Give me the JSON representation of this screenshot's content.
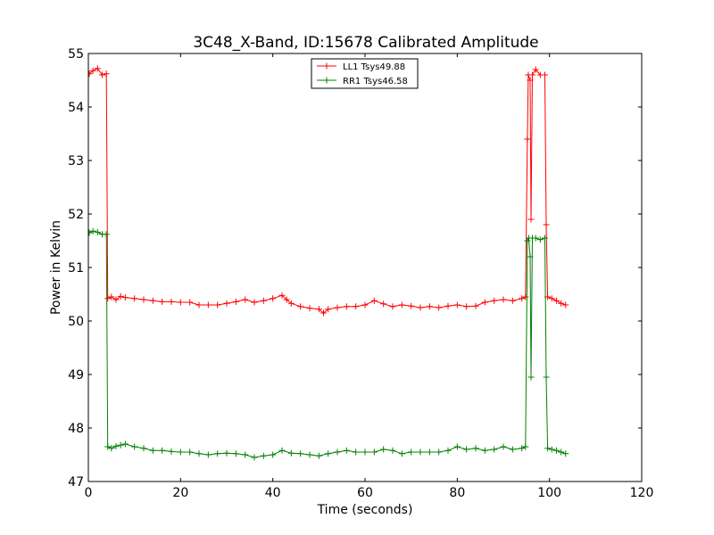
{
  "chart_data": {
    "type": "line",
    "title": "3C48_X-Band, ID:15678 Calibrated Amplitude",
    "xlabel": "Time (seconds)",
    "ylabel": "Power in Kelvin",
    "xlim": [
      0,
      120
    ],
    "ylim": [
      47,
      55
    ],
    "xticks": [
      "0",
      "20",
      "40",
      "60",
      "80",
      "100",
      "120"
    ],
    "yticks": [
      "47",
      "48",
      "49",
      "50",
      "51",
      "52",
      "53",
      "54",
      "55"
    ],
    "grid": false,
    "legend_position": "top-center",
    "marker": "plus",
    "series": [
      {
        "name": "LL1 Tsys49.88",
        "color": "#ff0000",
        "points": [
          [
            0.2,
            54.62
          ],
          [
            1,
            54.68
          ],
          [
            2,
            54.72
          ],
          [
            3,
            54.6
          ],
          [
            3.9,
            54.62
          ],
          [
            4.2,
            50.42
          ],
          [
            5,
            50.45
          ],
          [
            6,
            50.4
          ],
          [
            7,
            50.46
          ],
          [
            8,
            50.44
          ],
          [
            10,
            50.42
          ],
          [
            12,
            50.4
          ],
          [
            14,
            50.38
          ],
          [
            16,
            50.36
          ],
          [
            18,
            50.36
          ],
          [
            20,
            50.35
          ],
          [
            22,
            50.35
          ],
          [
            24,
            50.3
          ],
          [
            26,
            50.3
          ],
          [
            28,
            50.3
          ],
          [
            30,
            50.33
          ],
          [
            32,
            50.36
          ],
          [
            34,
            50.4
          ],
          [
            36,
            50.35
          ],
          [
            38,
            50.38
          ],
          [
            40,
            50.42
          ],
          [
            42,
            50.48
          ],
          [
            43,
            50.4
          ],
          [
            44,
            50.33
          ],
          [
            46,
            50.27
          ],
          [
            48,
            50.24
          ],
          [
            50,
            50.22
          ],
          [
            51,
            50.15
          ],
          [
            52,
            50.22
          ],
          [
            54,
            50.25
          ],
          [
            56,
            50.27
          ],
          [
            58,
            50.27
          ],
          [
            60,
            50.3
          ],
          [
            62,
            50.38
          ],
          [
            64,
            50.32
          ],
          [
            66,
            50.27
          ],
          [
            68,
            50.3
          ],
          [
            70,
            50.28
          ],
          [
            72,
            50.25
          ],
          [
            74,
            50.27
          ],
          [
            76,
            50.25
          ],
          [
            78,
            50.28
          ],
          [
            80,
            50.3
          ],
          [
            82,
            50.27
          ],
          [
            84,
            50.28
          ],
          [
            86,
            50.35
          ],
          [
            88,
            50.38
          ],
          [
            90,
            50.4
          ],
          [
            92,
            50.38
          ],
          [
            94,
            50.42
          ],
          [
            94.8,
            50.45
          ],
          [
            95.2,
            53.4
          ],
          [
            95.4,
            54.6
          ],
          [
            95.8,
            54.5
          ],
          [
            96,
            51.9
          ],
          [
            96.3,
            54.6
          ],
          [
            97,
            54.7
          ],
          [
            98,
            54.6
          ],
          [
            99,
            54.6
          ],
          [
            99.3,
            51.8
          ],
          [
            99.6,
            50.45
          ],
          [
            100.5,
            50.42
          ],
          [
            101.5,
            50.38
          ],
          [
            102.5,
            50.33
          ],
          [
            103.5,
            50.3
          ]
        ]
      },
      {
        "name": "RR1 Tsys46.58",
        "color": "#008000",
        "points": [
          [
            0.2,
            51.65
          ],
          [
            1,
            51.68
          ],
          [
            2,
            51.66
          ],
          [
            3,
            51.62
          ],
          [
            3.9,
            51.62
          ],
          [
            4.2,
            47.65
          ],
          [
            5,
            47.62
          ],
          [
            6,
            47.66
          ],
          [
            7,
            47.68
          ],
          [
            8,
            47.7
          ],
          [
            10,
            47.65
          ],
          [
            12,
            47.62
          ],
          [
            14,
            47.58
          ],
          [
            16,
            47.58
          ],
          [
            18,
            47.56
          ],
          [
            20,
            47.55
          ],
          [
            22,
            47.55
          ],
          [
            24,
            47.52
          ],
          [
            26,
            47.5
          ],
          [
            28,
            47.52
          ],
          [
            30,
            47.53
          ],
          [
            32,
            47.52
          ],
          [
            34,
            47.5
          ],
          [
            36,
            47.45
          ],
          [
            38,
            47.48
          ],
          [
            40,
            47.5
          ],
          [
            42,
            47.58
          ],
          [
            44,
            47.53
          ],
          [
            46,
            47.52
          ],
          [
            48,
            47.5
          ],
          [
            50,
            47.48
          ],
          [
            52,
            47.52
          ],
          [
            54,
            47.55
          ],
          [
            56,
            47.58
          ],
          [
            58,
            47.55
          ],
          [
            60,
            47.55
          ],
          [
            62,
            47.55
          ],
          [
            64,
            47.6
          ],
          [
            66,
            47.58
          ],
          [
            68,
            47.52
          ],
          [
            70,
            47.55
          ],
          [
            72,
            47.55
          ],
          [
            74,
            47.55
          ],
          [
            76,
            47.55
          ],
          [
            78,
            47.58
          ],
          [
            80,
            47.65
          ],
          [
            82,
            47.6
          ],
          [
            84,
            47.62
          ],
          [
            86,
            47.58
          ],
          [
            88,
            47.6
          ],
          [
            90,
            47.65
          ],
          [
            92,
            47.6
          ],
          [
            94,
            47.62
          ],
          [
            94.8,
            47.65
          ],
          [
            95.2,
            51.5
          ],
          [
            95.5,
            51.55
          ],
          [
            95.8,
            51.2
          ],
          [
            96,
            48.95
          ],
          [
            96.3,
            51.55
          ],
          [
            97,
            51.55
          ],
          [
            98,
            51.52
          ],
          [
            99,
            51.55
          ],
          [
            99.3,
            48.95
          ],
          [
            99.6,
            47.62
          ],
          [
            100.5,
            47.6
          ],
          [
            101.5,
            47.58
          ],
          [
            102.5,
            47.55
          ],
          [
            103.5,
            47.52
          ]
        ]
      }
    ]
  }
}
